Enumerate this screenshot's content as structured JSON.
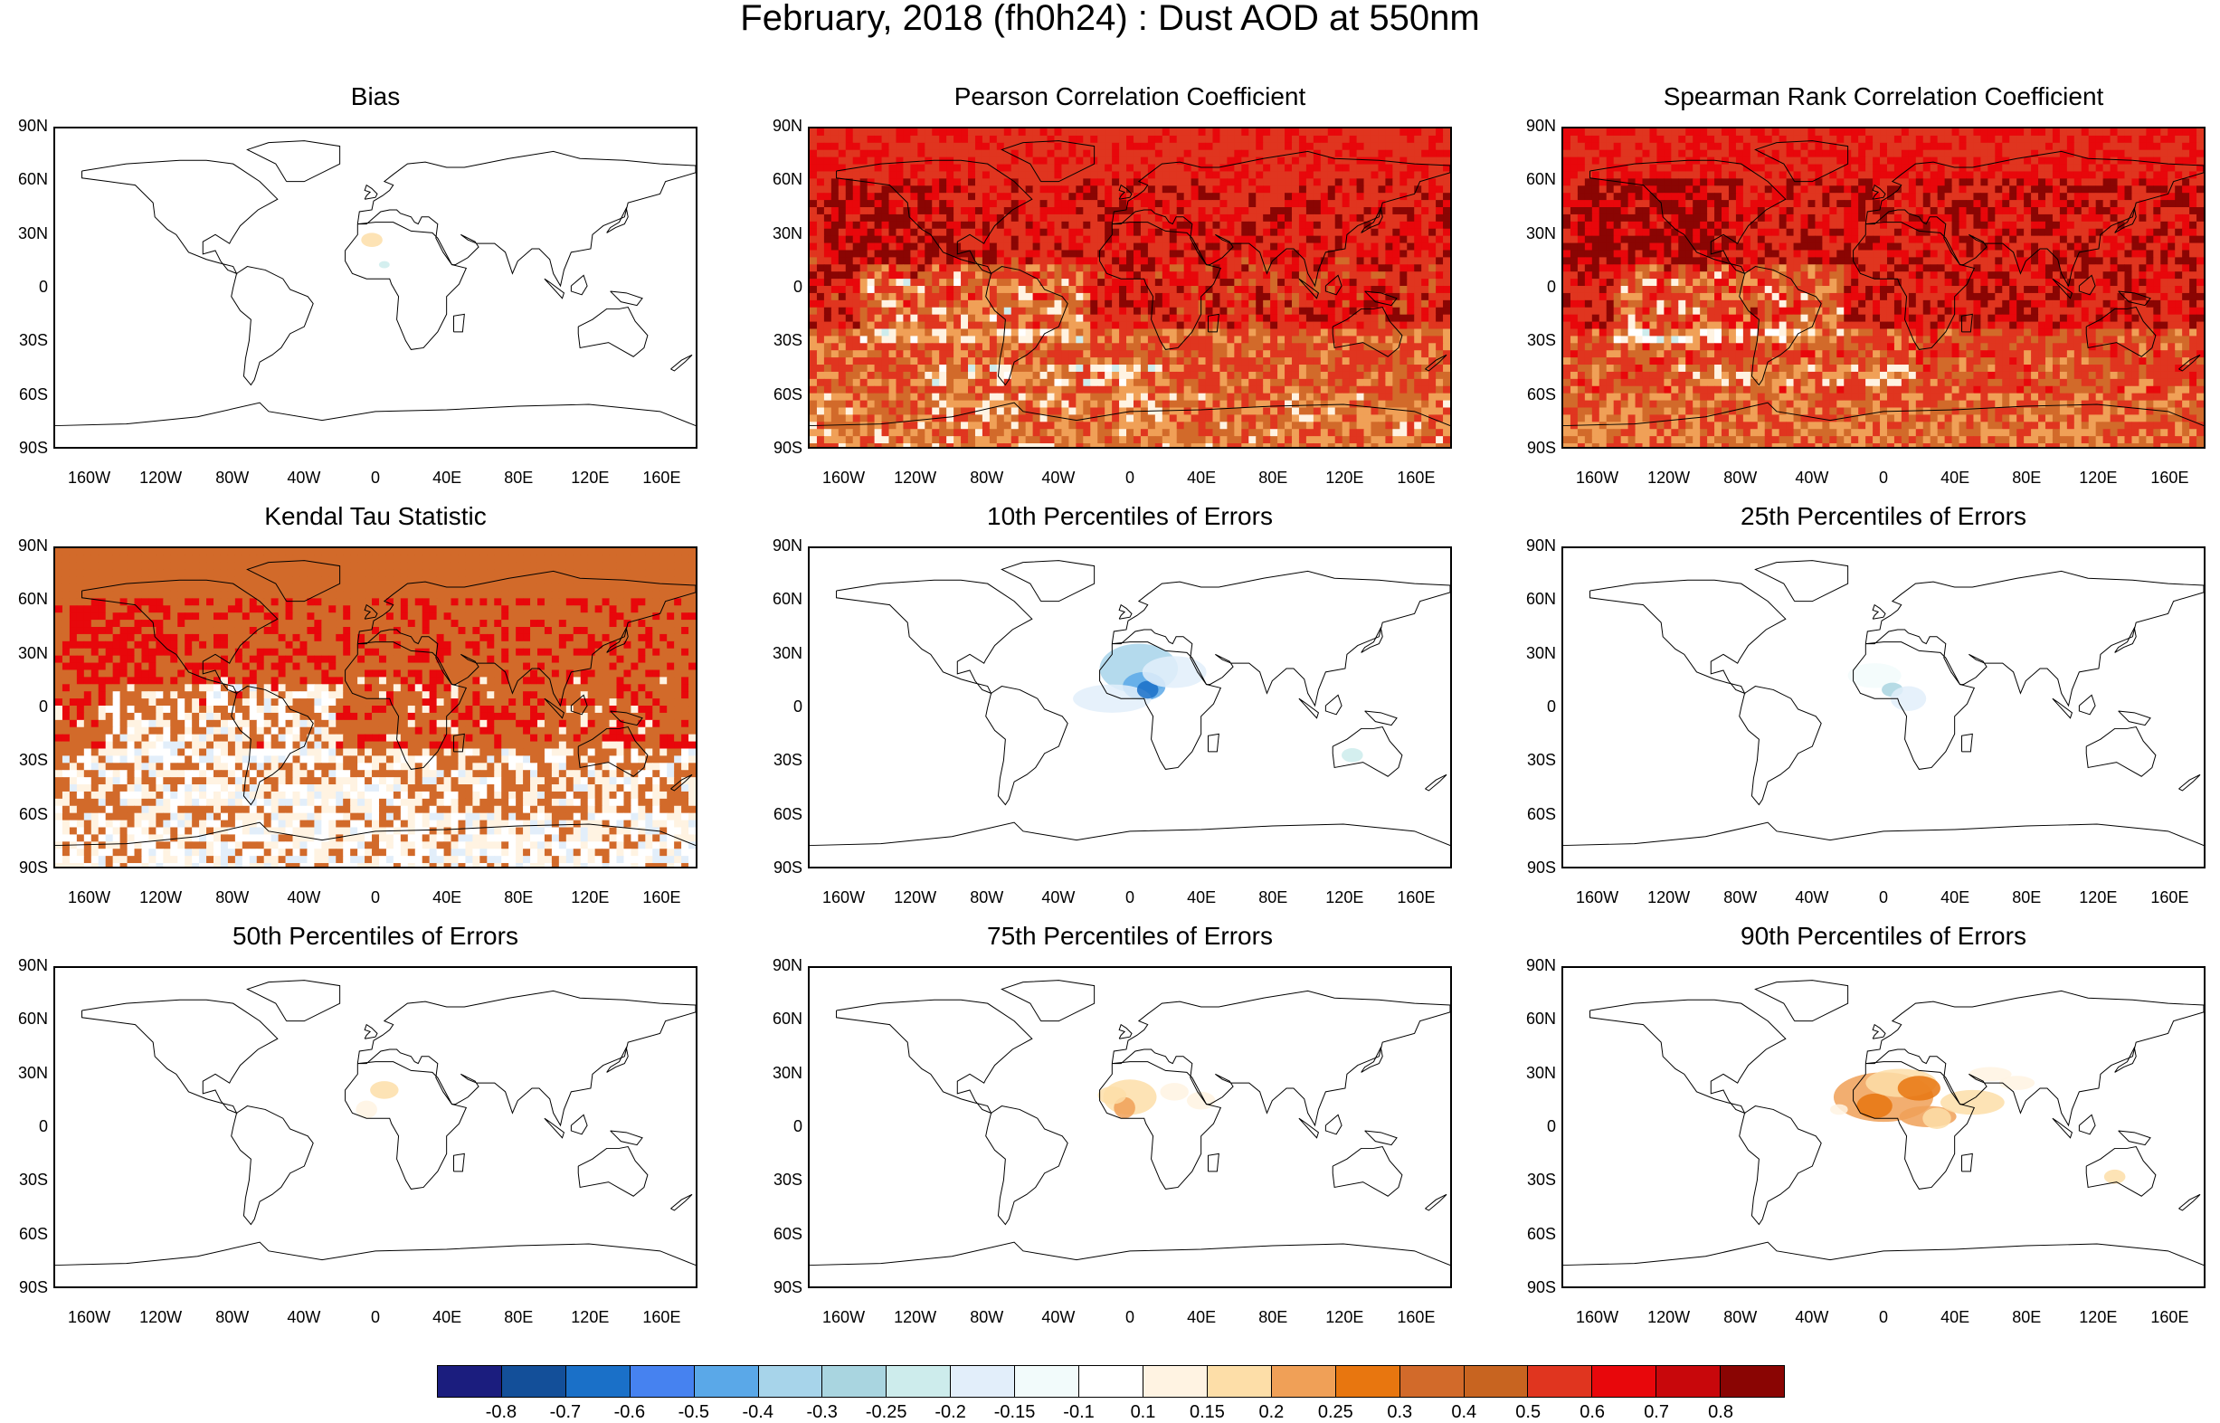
{
  "title": "February, 2018 (fh0h24) : Dust AOD at 550nm",
  "lat_ticks": [
    "90N",
    "60N",
    "30N",
    "0",
    "30S",
    "60S",
    "90S"
  ],
  "lon_ticks": [
    "160W",
    "120W",
    "80W",
    "40W",
    "0",
    "40E",
    "80E",
    "120E",
    "160E"
  ],
  "panels": [
    {
      "title": "Bias"
    },
    {
      "title": "Pearson Correlation Coefficient"
    },
    {
      "title": "Spearman Rank Correlation Coefficient"
    },
    {
      "title": "Kendal Tau Statistic"
    },
    {
      "title": "10th Percentiles of Errors"
    },
    {
      "title": "25th Percentiles of Errors"
    },
    {
      "title": "50th Percentiles of Errors"
    },
    {
      "title": "75th Percentiles of Errors"
    },
    {
      "title": "90th Percentiles of Errors"
    }
  ],
  "colorbar": {
    "colors": [
      "#1b1d7e",
      "#134f99",
      "#1a70c8",
      "#4682f0",
      "#5aa8e8",
      "#a7d4ea",
      "#a9d5e0",
      "#cdecec",
      "#e2eefa",
      "#f2fbfb",
      "#ffffff",
      "#fff3e2",
      "#fddea8",
      "#f0a057",
      "#e8760f",
      "#d26a2a",
      "#c86420",
      "#e0351f",
      "#e8070b",
      "#c8070b",
      "#8a0503"
    ],
    "labels": [
      "-0.8",
      "-0.7",
      "-0.6",
      "-0.5",
      "-0.4",
      "-0.3",
      "-0.25",
      "-0.2",
      "-0.15",
      "-0.1",
      "0.1",
      "0.15",
      "0.2",
      "0.25",
      "0.3",
      "0.4",
      "0.5",
      "0.6",
      "0.7",
      "0.8"
    ]
  }
}
